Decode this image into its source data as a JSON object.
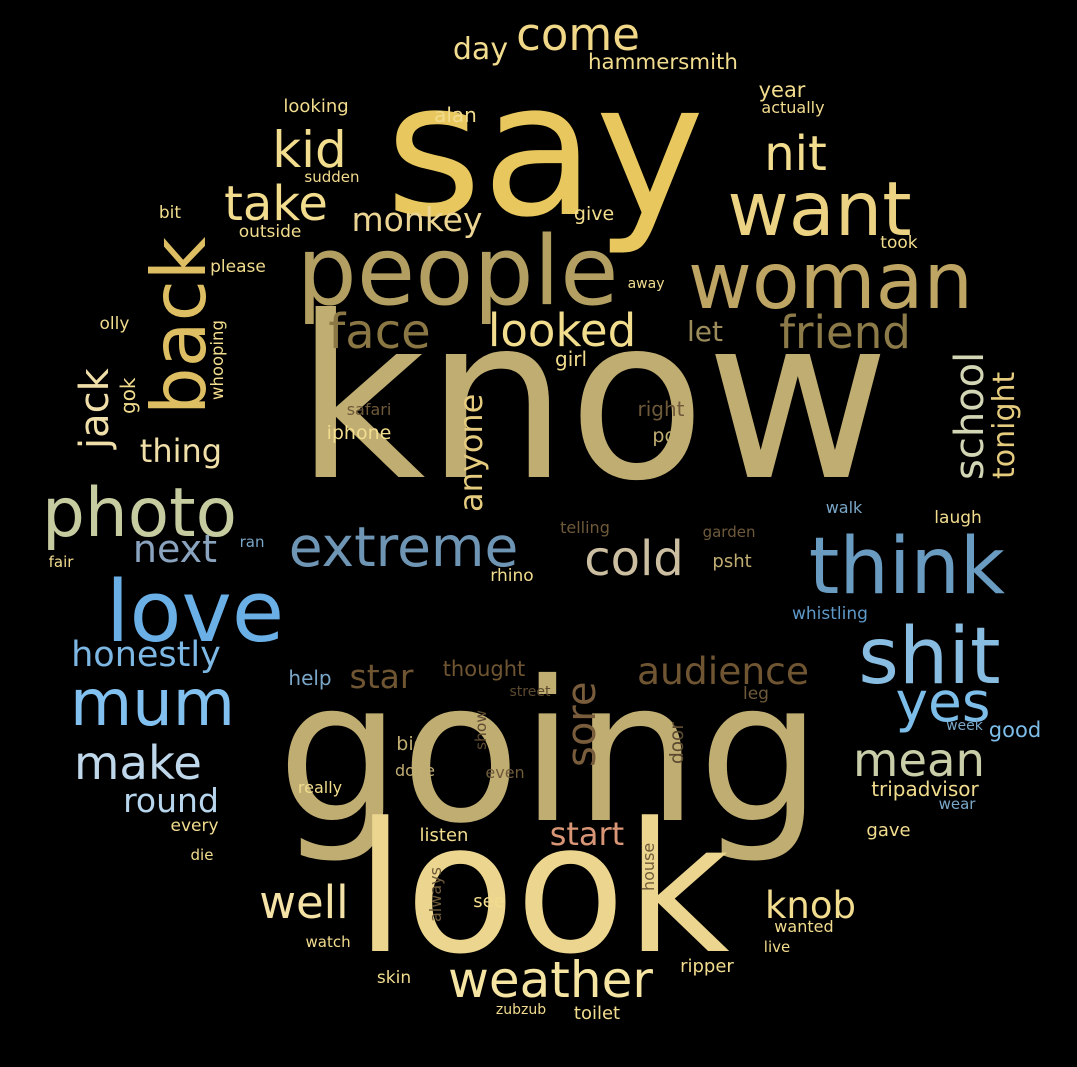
{
  "words": [
    {
      "text": "know",
      "color": "#c0ad72"
    },
    {
      "text": "say",
      "color": "#e8c75e"
    },
    {
      "text": "going",
      "color": "#c0ad72"
    },
    {
      "text": "look",
      "color": "#ecd58e"
    },
    {
      "text": "people",
      "color": "#b39f62"
    },
    {
      "text": "woman",
      "color": "#bfa563"
    },
    {
      "text": "back",
      "color": "#ddbe62"
    },
    {
      "text": "want",
      "color": "#ecd383"
    },
    {
      "text": "think",
      "color": "#6a9bc0"
    },
    {
      "text": "shit",
      "color": "#88bde1"
    },
    {
      "text": "love",
      "color": "#6aafe6"
    },
    {
      "text": "mum",
      "color": "#82c0ef"
    },
    {
      "text": "photo",
      "color": "#c7cca0"
    },
    {
      "text": "extreme",
      "color": "#6f95b4"
    },
    {
      "text": "weather",
      "color": "#f5e4a2"
    },
    {
      "text": "come",
      "color": "#f0d888"
    },
    {
      "text": "kid",
      "color": "#f2dc8e"
    },
    {
      "text": "nit",
      "color": "#f2dc8e"
    },
    {
      "text": "take",
      "color": "#f2dc8e"
    },
    {
      "text": "face",
      "color": "#8a7744"
    },
    {
      "text": "looked",
      "color": "#f2dc8e"
    },
    {
      "text": "friend",
      "color": "#8c7b48"
    },
    {
      "text": "school",
      "color": "#d3d6b4"
    },
    {
      "text": "cold",
      "color": "#ccbea0"
    },
    {
      "text": "next",
      "color": "#8aa4bf"
    },
    {
      "text": "jack",
      "color": "#f0dfa8"
    },
    {
      "text": "yes",
      "color": "#7dbde9"
    },
    {
      "text": "mean",
      "color": "#c9cea8"
    },
    {
      "text": "make",
      "color": "#bfd7ea"
    },
    {
      "text": "sore",
      "color": "#785c3c"
    },
    {
      "text": "well",
      "color": "#f5e2a6"
    },
    {
      "text": "audience",
      "color": "#705532"
    },
    {
      "text": "honestly",
      "color": "#7db7e3"
    },
    {
      "text": "monkey",
      "color": "#ecd593"
    },
    {
      "text": "thing",
      "color": "#f0dfa8"
    },
    {
      "text": "anyone",
      "color": "#e4cb7e"
    },
    {
      "text": "tonight",
      "color": "#e4cb7e"
    },
    {
      "text": "knob",
      "color": "#f2dc8e"
    },
    {
      "text": "round",
      "color": "#b7d5ec"
    },
    {
      "text": "star",
      "color": "#705532"
    },
    {
      "text": "start",
      "color": "#d99676"
    },
    {
      "text": "let",
      "color": "#9c8c5c"
    },
    {
      "text": "day",
      "color": "#f2dc8e"
    },
    {
      "text": "hammersmith",
      "color": "#f2dc8e"
    },
    {
      "text": "year",
      "color": "#f2dc8e"
    },
    {
      "text": "actually",
      "color": "#f2dc8e"
    },
    {
      "text": "looking",
      "color": "#f2dc8e"
    },
    {
      "text": "alan",
      "color": "#f2dc8e"
    },
    {
      "text": "sudden",
      "color": "#f2dc8e"
    },
    {
      "text": "bit",
      "color": "#f2dc8e"
    },
    {
      "text": "give",
      "color": "#f2dc8e"
    },
    {
      "text": "outside",
      "color": "#f2dc8e"
    },
    {
      "text": "took",
      "color": "#f2dc8e"
    },
    {
      "text": "please",
      "color": "#f2dc8e"
    },
    {
      "text": "away",
      "color": "#f2dc8e"
    },
    {
      "text": "olly",
      "color": "#f2dc8e"
    },
    {
      "text": "whooping",
      "color": "#f2dc8e"
    },
    {
      "text": "gok",
      "color": "#f2dc8e"
    },
    {
      "text": "girl",
      "color": "#f2dc8e"
    },
    {
      "text": "safari",
      "color": "#6e5a3a"
    },
    {
      "text": "right",
      "color": "#6e5a3a"
    },
    {
      "text": "iphone",
      "color": "#f2dc8e"
    },
    {
      "text": "pow",
      "color": "#c0ad72"
    },
    {
      "text": "telling",
      "color": "#6e5a3a"
    },
    {
      "text": "garden",
      "color": "#6e5a3a"
    },
    {
      "text": "walk",
      "color": "#7aa7c8"
    },
    {
      "text": "laugh",
      "color": "#f2dc8e"
    },
    {
      "text": "fair",
      "color": "#f2dc8e"
    },
    {
      "text": "ran",
      "color": "#7aa7c8"
    },
    {
      "text": "rhino",
      "color": "#f2dc8e"
    },
    {
      "text": "psht",
      "color": "#c0ad72"
    },
    {
      "text": "whistling",
      "color": "#5e99c8"
    },
    {
      "text": "thought",
      "color": "#705532"
    },
    {
      "text": "help",
      "color": "#7aa7c8"
    },
    {
      "text": "street",
      "color": "#5c4a30"
    },
    {
      "text": "leg",
      "color": "#6e5a3a"
    },
    {
      "text": "show",
      "color": "#5c4a30"
    },
    {
      "text": "big",
      "color": "#c0ad72"
    },
    {
      "text": "door",
      "color": "#5c4a30"
    },
    {
      "text": "week",
      "color": "#7aa7c8"
    },
    {
      "text": "good",
      "color": "#7dbde9"
    },
    {
      "text": "done",
      "color": "#c0ad72"
    },
    {
      "text": "even",
      "color": "#6e5a3a"
    },
    {
      "text": "really",
      "color": "#f2dc8e"
    },
    {
      "text": "tripadvisor",
      "color": "#f2dc8e"
    },
    {
      "text": "wear",
      "color": "#7aa7c8"
    },
    {
      "text": "every",
      "color": "#f2dc8e"
    },
    {
      "text": "listen",
      "color": "#f2dc8e"
    },
    {
      "text": "gave",
      "color": "#f2dc8e"
    },
    {
      "text": "die",
      "color": "#f2dc8e"
    },
    {
      "text": "always",
      "color": "#6e5a3a"
    },
    {
      "text": "house",
      "color": "#6e5a3a"
    },
    {
      "text": "see",
      "color": "#f2dc8e"
    },
    {
      "text": "wanted",
      "color": "#f2dc8e"
    },
    {
      "text": "watch",
      "color": "#f2dc8e"
    },
    {
      "text": "live",
      "color": "#f2dc8e"
    },
    {
      "text": "ripper",
      "color": "#f2dc8e"
    },
    {
      "text": "skin",
      "color": "#f2dc8e"
    },
    {
      "text": "zubzub",
      "color": "#f2dc8e"
    },
    {
      "text": "toilet",
      "color": "#f2dc8e"
    }
  ]
}
